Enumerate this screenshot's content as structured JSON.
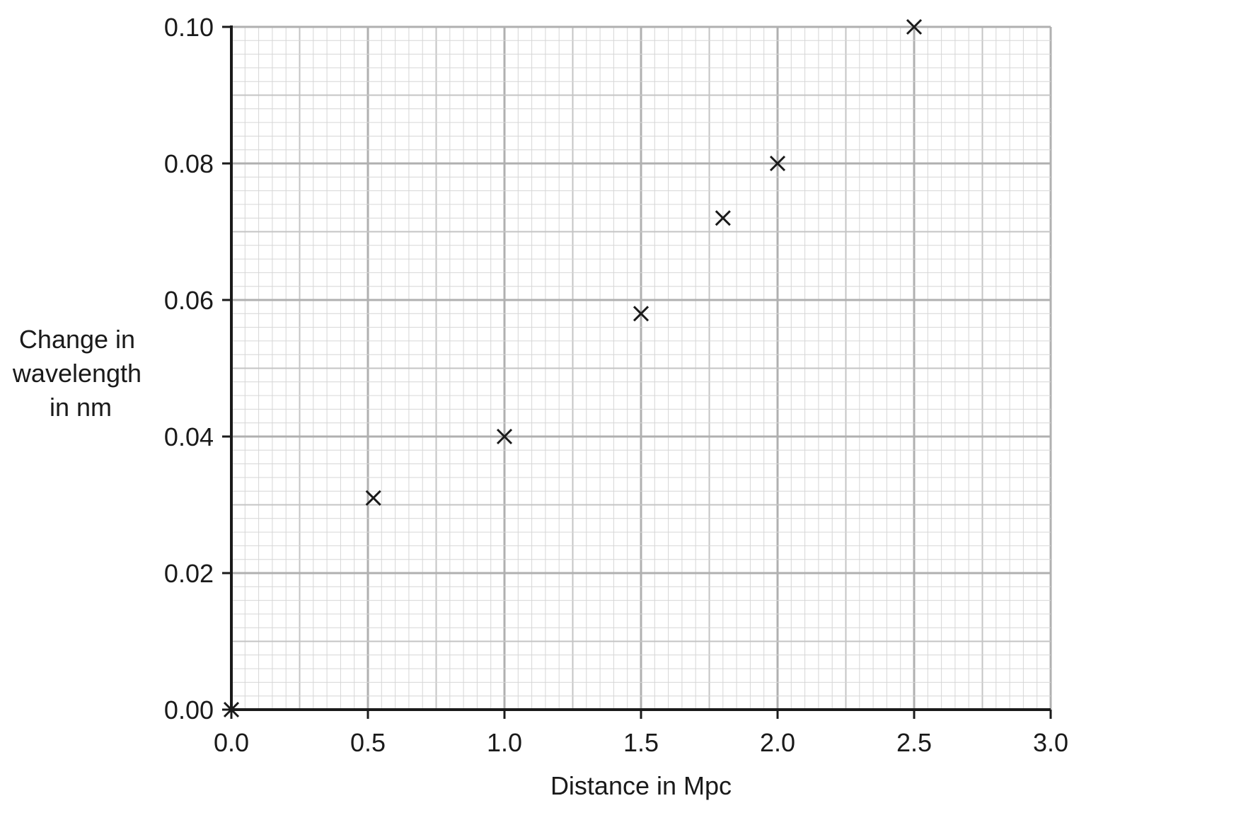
{
  "chart_data": {
    "type": "scatter",
    "title": "",
    "xlabel": "Distance in Mpc",
    "ylabel_lines": [
      "Change in",
      "wavelength",
      "in nm"
    ],
    "xlim": [
      0.0,
      3.0
    ],
    "ylim": [
      0.0,
      0.1
    ],
    "x_ticks": [
      "0.0",
      "0.5",
      "1.0",
      "1.5",
      "2.0",
      "2.5",
      "3.0"
    ],
    "y_ticks": [
      "0.00",
      "0.02",
      "0.04",
      "0.06",
      "0.08",
      "0.10"
    ],
    "grid": true,
    "marker": "x",
    "points": [
      {
        "x": 0.0,
        "y": 0.0
      },
      {
        "x": 0.52,
        "y": 0.031
      },
      {
        "x": 1.0,
        "y": 0.04
      },
      {
        "x": 1.5,
        "y": 0.058
      },
      {
        "x": 1.8,
        "y": 0.072
      },
      {
        "x": 2.0,
        "y": 0.08
      },
      {
        "x": 2.5,
        "y": 0.1
      }
    ],
    "colors": {
      "grid_fine": "#d6d6d6",
      "grid_mid": "#c4c4c4",
      "grid_major": "#b0b0b0",
      "axis": "#1a1a1a",
      "marker": "#1a1a1a"
    }
  }
}
